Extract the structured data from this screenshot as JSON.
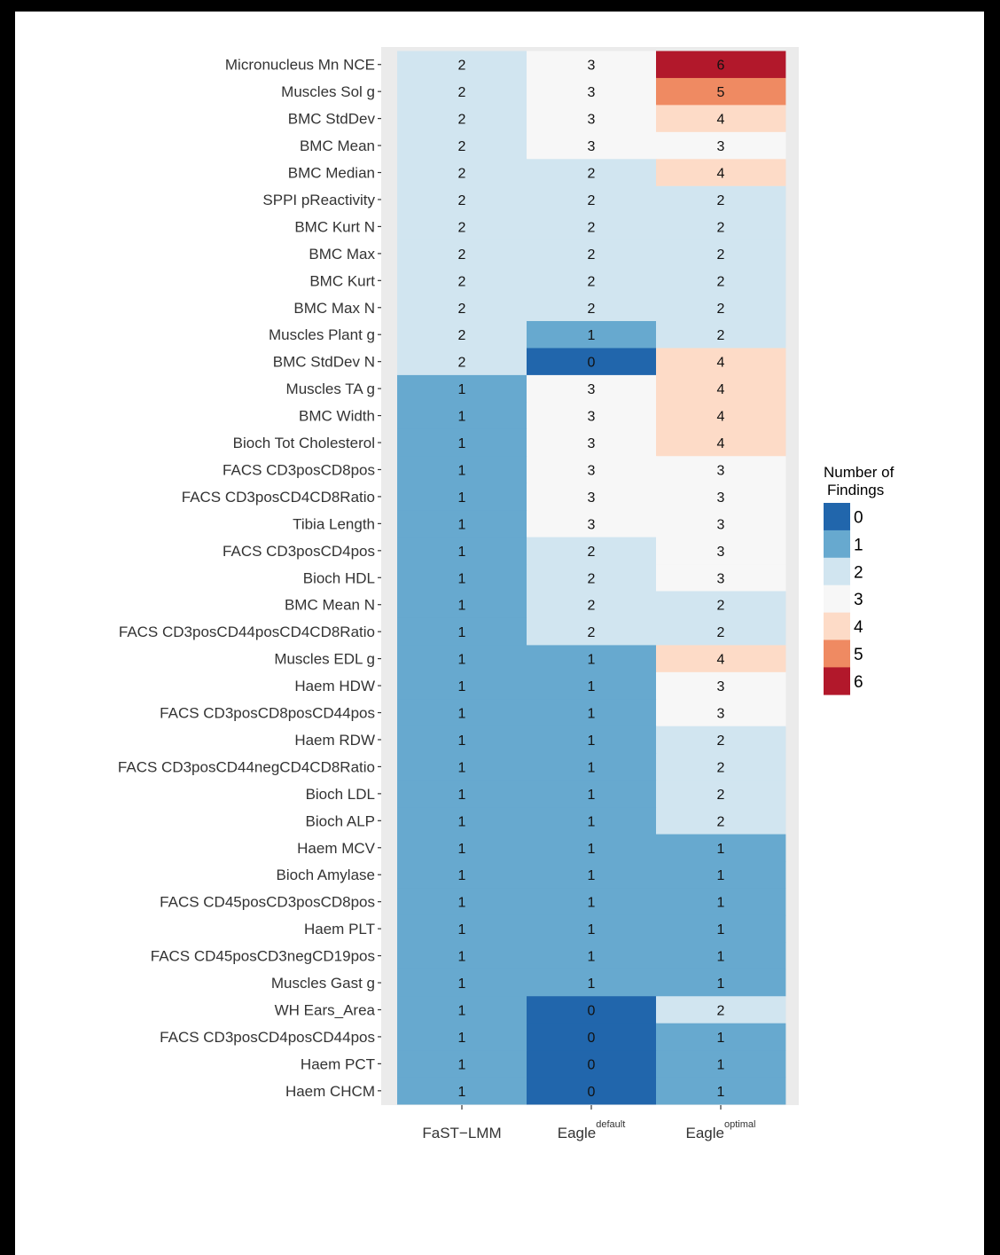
{
  "chart_data": {
    "type": "heatmap",
    "title": "",
    "xlabel": "",
    "ylabel": "",
    "columns": [
      {
        "label": "FaST−LMM",
        "base": "FaST−LMM",
        "sup": ""
      },
      {
        "label": "Eagle default",
        "base": "Eagle",
        "sup": "default"
      },
      {
        "label": "Eagle optimal",
        "base": "Eagle",
        "sup": "optimal"
      }
    ],
    "rows": [
      "Micronucleus Mn NCE",
      "Muscles Sol g",
      "BMC StdDev",
      "BMC Mean",
      "BMC Median",
      "SPPI pReactivity",
      "BMC Kurt N",
      "BMC Max",
      "BMC Kurt",
      "BMC Max N",
      "Muscles Plant g",
      "BMC StdDev N",
      "Muscles TA g",
      "BMC Width",
      "Bioch Tot Cholesterol",
      "FACS CD3posCD8pos",
      "FACS CD3posCD4CD8Ratio",
      "Tibia Length",
      "FACS CD3posCD4pos",
      "Bioch HDL",
      "BMC Mean N",
      "FACS CD3posCD44posCD4CD8Ratio",
      "Muscles EDL g",
      "Haem HDW",
      "FACS CD3posCD8posCD44pos",
      "Haem RDW",
      "FACS CD3posCD44negCD4CD8Ratio",
      "Bioch LDL",
      "Bioch ALP",
      "Haem MCV",
      "Bioch Amylase",
      "FACS CD45posCD3posCD8pos",
      "Haem PLT",
      "FACS CD45posCD3negCD19pos",
      "Muscles Gast g",
      "WH Ears_Area",
      "FACS CD3posCD4posCD44pos",
      "Haem PCT",
      "Haem CHCM"
    ],
    "values": [
      [
        2,
        3,
        6
      ],
      [
        2,
        3,
        5
      ],
      [
        2,
        3,
        4
      ],
      [
        2,
        3,
        3
      ],
      [
        2,
        2,
        4
      ],
      [
        2,
        2,
        2
      ],
      [
        2,
        2,
        2
      ],
      [
        2,
        2,
        2
      ],
      [
        2,
        2,
        2
      ],
      [
        2,
        2,
        2
      ],
      [
        2,
        1,
        2
      ],
      [
        2,
        0,
        4
      ],
      [
        1,
        3,
        4
      ],
      [
        1,
        3,
        4
      ],
      [
        1,
        3,
        4
      ],
      [
        1,
        3,
        3
      ],
      [
        1,
        3,
        3
      ],
      [
        1,
        3,
        3
      ],
      [
        1,
        2,
        3
      ],
      [
        1,
        2,
        3
      ],
      [
        1,
        2,
        2
      ],
      [
        1,
        2,
        2
      ],
      [
        1,
        1,
        4
      ],
      [
        1,
        1,
        3
      ],
      [
        1,
        1,
        3
      ],
      [
        1,
        1,
        2
      ],
      [
        1,
        1,
        2
      ],
      [
        1,
        1,
        2
      ],
      [
        1,
        1,
        2
      ],
      [
        1,
        1,
        1
      ],
      [
        1,
        1,
        1
      ],
      [
        1,
        1,
        1
      ],
      [
        1,
        1,
        1
      ],
      [
        1,
        1,
        1
      ],
      [
        1,
        1,
        1
      ],
      [
        1,
        0,
        2
      ],
      [
        1,
        0,
        1
      ],
      [
        1,
        0,
        1
      ],
      [
        1,
        0,
        1
      ]
    ],
    "legend": {
      "title": [
        "Number of",
        "Findings"
      ],
      "position": "right",
      "levels": [
        0,
        1,
        2,
        3,
        4,
        5,
        6
      ],
      "colors": [
        "#2166ac",
        "#67a9cf",
        "#d1e5f0",
        "#f7f7f7",
        "#fddbc7",
        "#ef8a62",
        "#b2182b"
      ]
    },
    "panel_background": "#ebebeb",
    "grid": true
  }
}
